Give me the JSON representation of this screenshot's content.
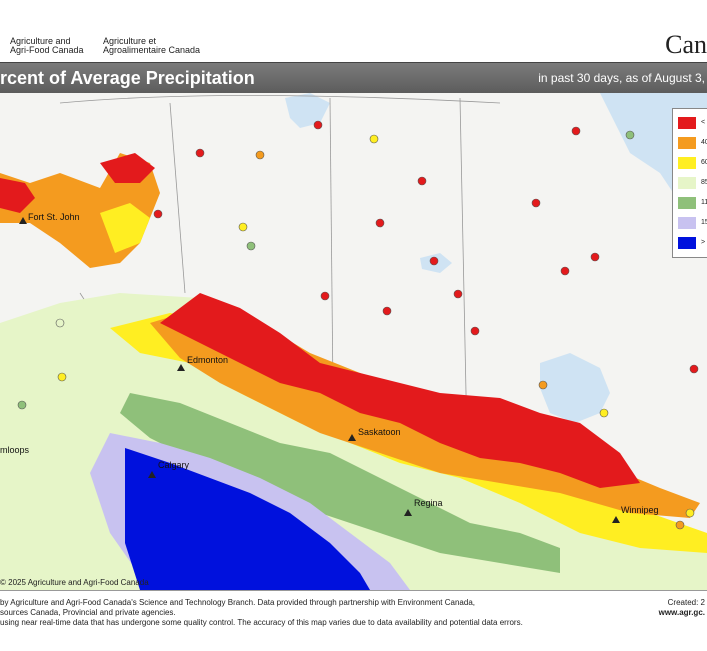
{
  "header": {
    "agency_en_line1": "Agriculture and",
    "agency_en_line2": "Agri-Food Canada",
    "agency_fr_line1": "Agriculture et",
    "agency_fr_line2": "Agroalimentaire Canada",
    "wordmark": "Can"
  },
  "title_bar": {
    "title": "rcent of Average Precipitation",
    "subtitle": "in past 30 days, as of August 3,"
  },
  "legend": {
    "items": [
      {
        "label": "< 4",
        "color": "#e31a1c"
      },
      {
        "label": "40",
        "color": "#f49b1f"
      },
      {
        "label": "60",
        "color": "#ffee22"
      },
      {
        "label": "85",
        "color": "#e6f5c8"
      },
      {
        "label": "11",
        "color": "#8fc07a"
      },
      {
        "label": "15",
        "color": "#c8c2f0"
      },
      {
        "label": "> 2",
        "color": "#0011dd"
      }
    ]
  },
  "cities": [
    {
      "name": "Fort St. John"
    },
    {
      "name": "Edmonton"
    },
    {
      "name": "Saskatoon"
    },
    {
      "name": "Calgary"
    },
    {
      "name": "Regina"
    },
    {
      "name": "Winnipeg"
    },
    {
      "name": "mloops"
    }
  ],
  "copyright": "© 2025 Agriculture and Agri-Food Canada",
  "footer": {
    "line1": "by Agriculture and Agri-Food Canada's Science and Technology Branch. Data provided through partnership with Environment Canada,",
    "line2": "sources Canada, Provincial and private agencies.",
    "line3": "using near real-time data that has undergone some quality control. The accuracy of this map varies due to data availability and potential data errors.",
    "created": "Created: 2",
    "website": "www.agr.gc."
  }
}
